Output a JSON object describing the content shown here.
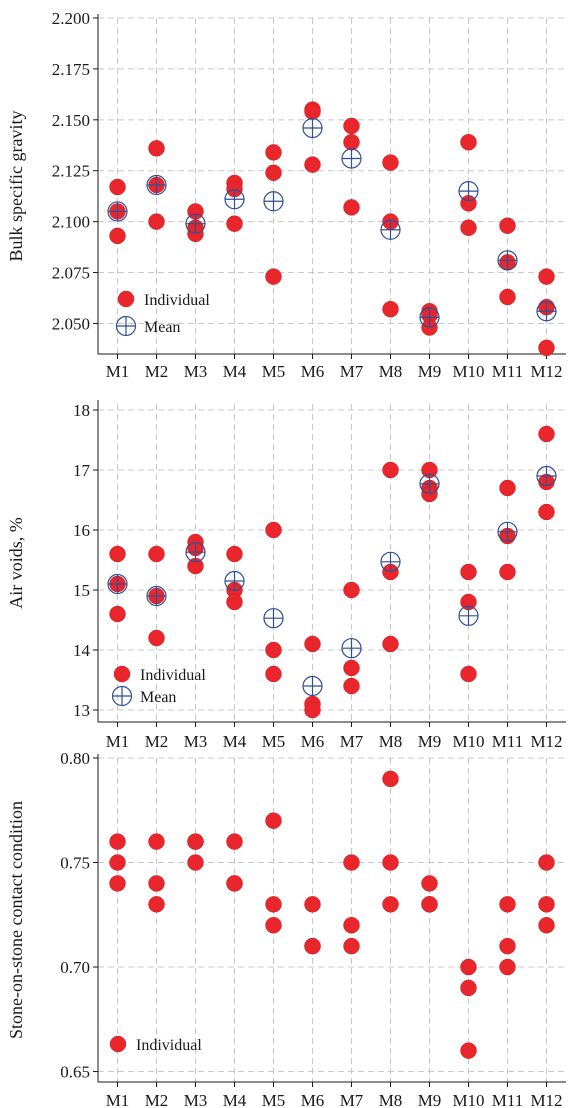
{
  "chart_data": [
    {
      "type": "scatter",
      "ylabel": "Bulk specific gravity",
      "xlabel": "",
      "categories": [
        "M1",
        "M2",
        "M3",
        "M4",
        "M5",
        "M6",
        "M7",
        "M8",
        "M9",
        "M10",
        "M11",
        "M12"
      ],
      "ylim": [
        2.035,
        2.2
      ],
      "yticks": [
        2.05,
        2.075,
        2.1,
        2.125,
        2.15,
        2.175,
        2.2
      ],
      "ytick_labels": [
        "2.050",
        "2.075",
        "2.100",
        "2.125",
        "2.150",
        "2.175",
        "2.200"
      ],
      "grid": true,
      "legend_position": "bottom-left",
      "series": [
        {
          "name": "Individual",
          "color": "#e8262b",
          "marker": "filled-circle",
          "points": [
            [
              0,
              2.117
            ],
            [
              0,
              2.105
            ],
            [
              0,
              2.093
            ],
            [
              1,
              2.136
            ],
            [
              1,
              2.118
            ],
            [
              1,
              2.1
            ],
            [
              2,
              2.105
            ],
            [
              2,
              2.097
            ],
            [
              2,
              2.094
            ],
            [
              3,
              2.119
            ],
            [
              3,
              2.116
            ],
            [
              3,
              2.099
            ],
            [
              4,
              2.134
            ],
            [
              4,
              2.124
            ],
            [
              4,
              2.073
            ],
            [
              5,
              2.155
            ],
            [
              5,
              2.154
            ],
            [
              5,
              2.128
            ],
            [
              6,
              2.147
            ],
            [
              6,
              2.139
            ],
            [
              6,
              2.107
            ],
            [
              7,
              2.129
            ],
            [
              7,
              2.1
            ],
            [
              7,
              2.057
            ],
            [
              8,
              2.056
            ],
            [
              8,
              2.054
            ],
            [
              8,
              2.048
            ],
            [
              9,
              2.139
            ],
            [
              9,
              2.109
            ],
            [
              9,
              2.097
            ],
            [
              10,
              2.098
            ],
            [
              10,
              2.08
            ],
            [
              10,
              2.063
            ],
            [
              11,
              2.073
            ],
            [
              11,
              2.058
            ],
            [
              11,
              2.038
            ]
          ]
        },
        {
          "name": "Mean",
          "color": "#2f4f96",
          "marker": "circle-plus",
          "points": [
            [
              0,
              2.105
            ],
            [
              1,
              2.118
            ],
            [
              2,
              2.099
            ],
            [
              3,
              2.111
            ],
            [
              4,
              2.11
            ],
            [
              5,
              2.146
            ],
            [
              6,
              2.131
            ],
            [
              7,
              2.096
            ],
            [
              8,
              2.053
            ],
            [
              9,
              2.115
            ],
            [
              10,
              2.081
            ],
            [
              11,
              2.056
            ]
          ]
        }
      ]
    },
    {
      "type": "scatter",
      "ylabel": "Air voids, %",
      "xlabel": "",
      "categories": [
        "M1",
        "M2",
        "M3",
        "M4",
        "M5",
        "M6",
        "M7",
        "M8",
        "M9",
        "M10",
        "M11",
        "M12"
      ],
      "ylim": [
        12.8,
        18.1
      ],
      "yticks": [
        13,
        14,
        15,
        16,
        17,
        18
      ],
      "ytick_labels": [
        "13",
        "14",
        "15",
        "16",
        "17",
        "18"
      ],
      "grid": true,
      "legend_position": "bottom-left",
      "series": [
        {
          "name": "Individual",
          "color": "#e8262b",
          "marker": "filled-circle",
          "points": [
            [
              0,
              15.6
            ],
            [
              0,
              15.1
            ],
            [
              0,
              14.6
            ],
            [
              1,
              15.6
            ],
            [
              1,
              14.9
            ],
            [
              1,
              14.2
            ],
            [
              2,
              15.8
            ],
            [
              2,
              15.7
            ],
            [
              2,
              15.4
            ],
            [
              3,
              15.6
            ],
            [
              3,
              15.0
            ],
            [
              3,
              14.8
            ],
            [
              4,
              16.0
            ],
            [
              4,
              14.0
            ],
            [
              4,
              13.6
            ],
            [
              5,
              14.1
            ],
            [
              5,
              13.1
            ],
            [
              5,
              13.0
            ],
            [
              6,
              15.0
            ],
            [
              6,
              13.7
            ],
            [
              6,
              13.4
            ],
            [
              7,
              17.0
            ],
            [
              7,
              15.3
            ],
            [
              7,
              14.1
            ],
            [
              8,
              17.0
            ],
            [
              8,
              16.7
            ],
            [
              8,
              16.6
            ],
            [
              9,
              15.3
            ],
            [
              9,
              14.8
            ],
            [
              9,
              13.6
            ],
            [
              10,
              16.7
            ],
            [
              10,
              15.9
            ],
            [
              10,
              15.3
            ],
            [
              11,
              17.6
            ],
            [
              11,
              16.8
            ],
            [
              11,
              16.3
            ]
          ]
        },
        {
          "name": "Mean",
          "color": "#2f4f96",
          "marker": "circle-plus",
          "points": [
            [
              0,
              15.1
            ],
            [
              1,
              14.9
            ],
            [
              2,
              15.63
            ],
            [
              3,
              15.15
            ],
            [
              4,
              14.53
            ],
            [
              5,
              13.4
            ],
            [
              6,
              14.03
            ],
            [
              7,
              15.47
            ],
            [
              8,
              16.77
            ],
            [
              9,
              14.57
            ],
            [
              10,
              15.97
            ],
            [
              11,
              16.9
            ]
          ]
        }
      ]
    },
    {
      "type": "scatter",
      "ylabel": "Stone-on-stone contact condition",
      "xlabel": "",
      "categories": [
        "M1",
        "M2",
        "M3",
        "M4",
        "M5",
        "M6",
        "M7",
        "M8",
        "M9",
        "M10",
        "M11",
        "M12"
      ],
      "ylim": [
        0.645,
        0.8
      ],
      "yticks": [
        0.65,
        0.7,
        0.75,
        0.8
      ],
      "ytick_labels": [
        "0.65",
        "0.70",
        "0.75",
        "0.80"
      ],
      "grid": true,
      "legend_position": "bottom-left",
      "series": [
        {
          "name": "Individual",
          "color": "#e8262b",
          "marker": "filled-circle",
          "points": [
            [
              0,
              0.76
            ],
            [
              0,
              0.75
            ],
            [
              0,
              0.74
            ],
            [
              1,
              0.76
            ],
            [
              1,
              0.74
            ],
            [
              1,
              0.73
            ],
            [
              2,
              0.76
            ],
            [
              2,
              0.76
            ],
            [
              2,
              0.75
            ],
            [
              3,
              0.76
            ],
            [
              3,
              0.74
            ],
            [
              3,
              0.74
            ],
            [
              4,
              0.77
            ],
            [
              4,
              0.73
            ],
            [
              4,
              0.72
            ],
            [
              5,
              0.73
            ],
            [
              5,
              0.71
            ],
            [
              5,
              0.71
            ],
            [
              6,
              0.75
            ],
            [
              6,
              0.72
            ],
            [
              6,
              0.71
            ],
            [
              7,
              0.79
            ],
            [
              7,
              0.75
            ],
            [
              7,
              0.73
            ],
            [
              8,
              0.74
            ],
            [
              8,
              0.73
            ],
            [
              8,
              0.73
            ],
            [
              9,
              0.7
            ],
            [
              9,
              0.69
            ],
            [
              9,
              0.66
            ],
            [
              10,
              0.73
            ],
            [
              10,
              0.71
            ],
            [
              10,
              0.7
            ],
            [
              11,
              0.75
            ],
            [
              11,
              0.73
            ],
            [
              11,
              0.72
            ]
          ]
        }
      ]
    }
  ]
}
